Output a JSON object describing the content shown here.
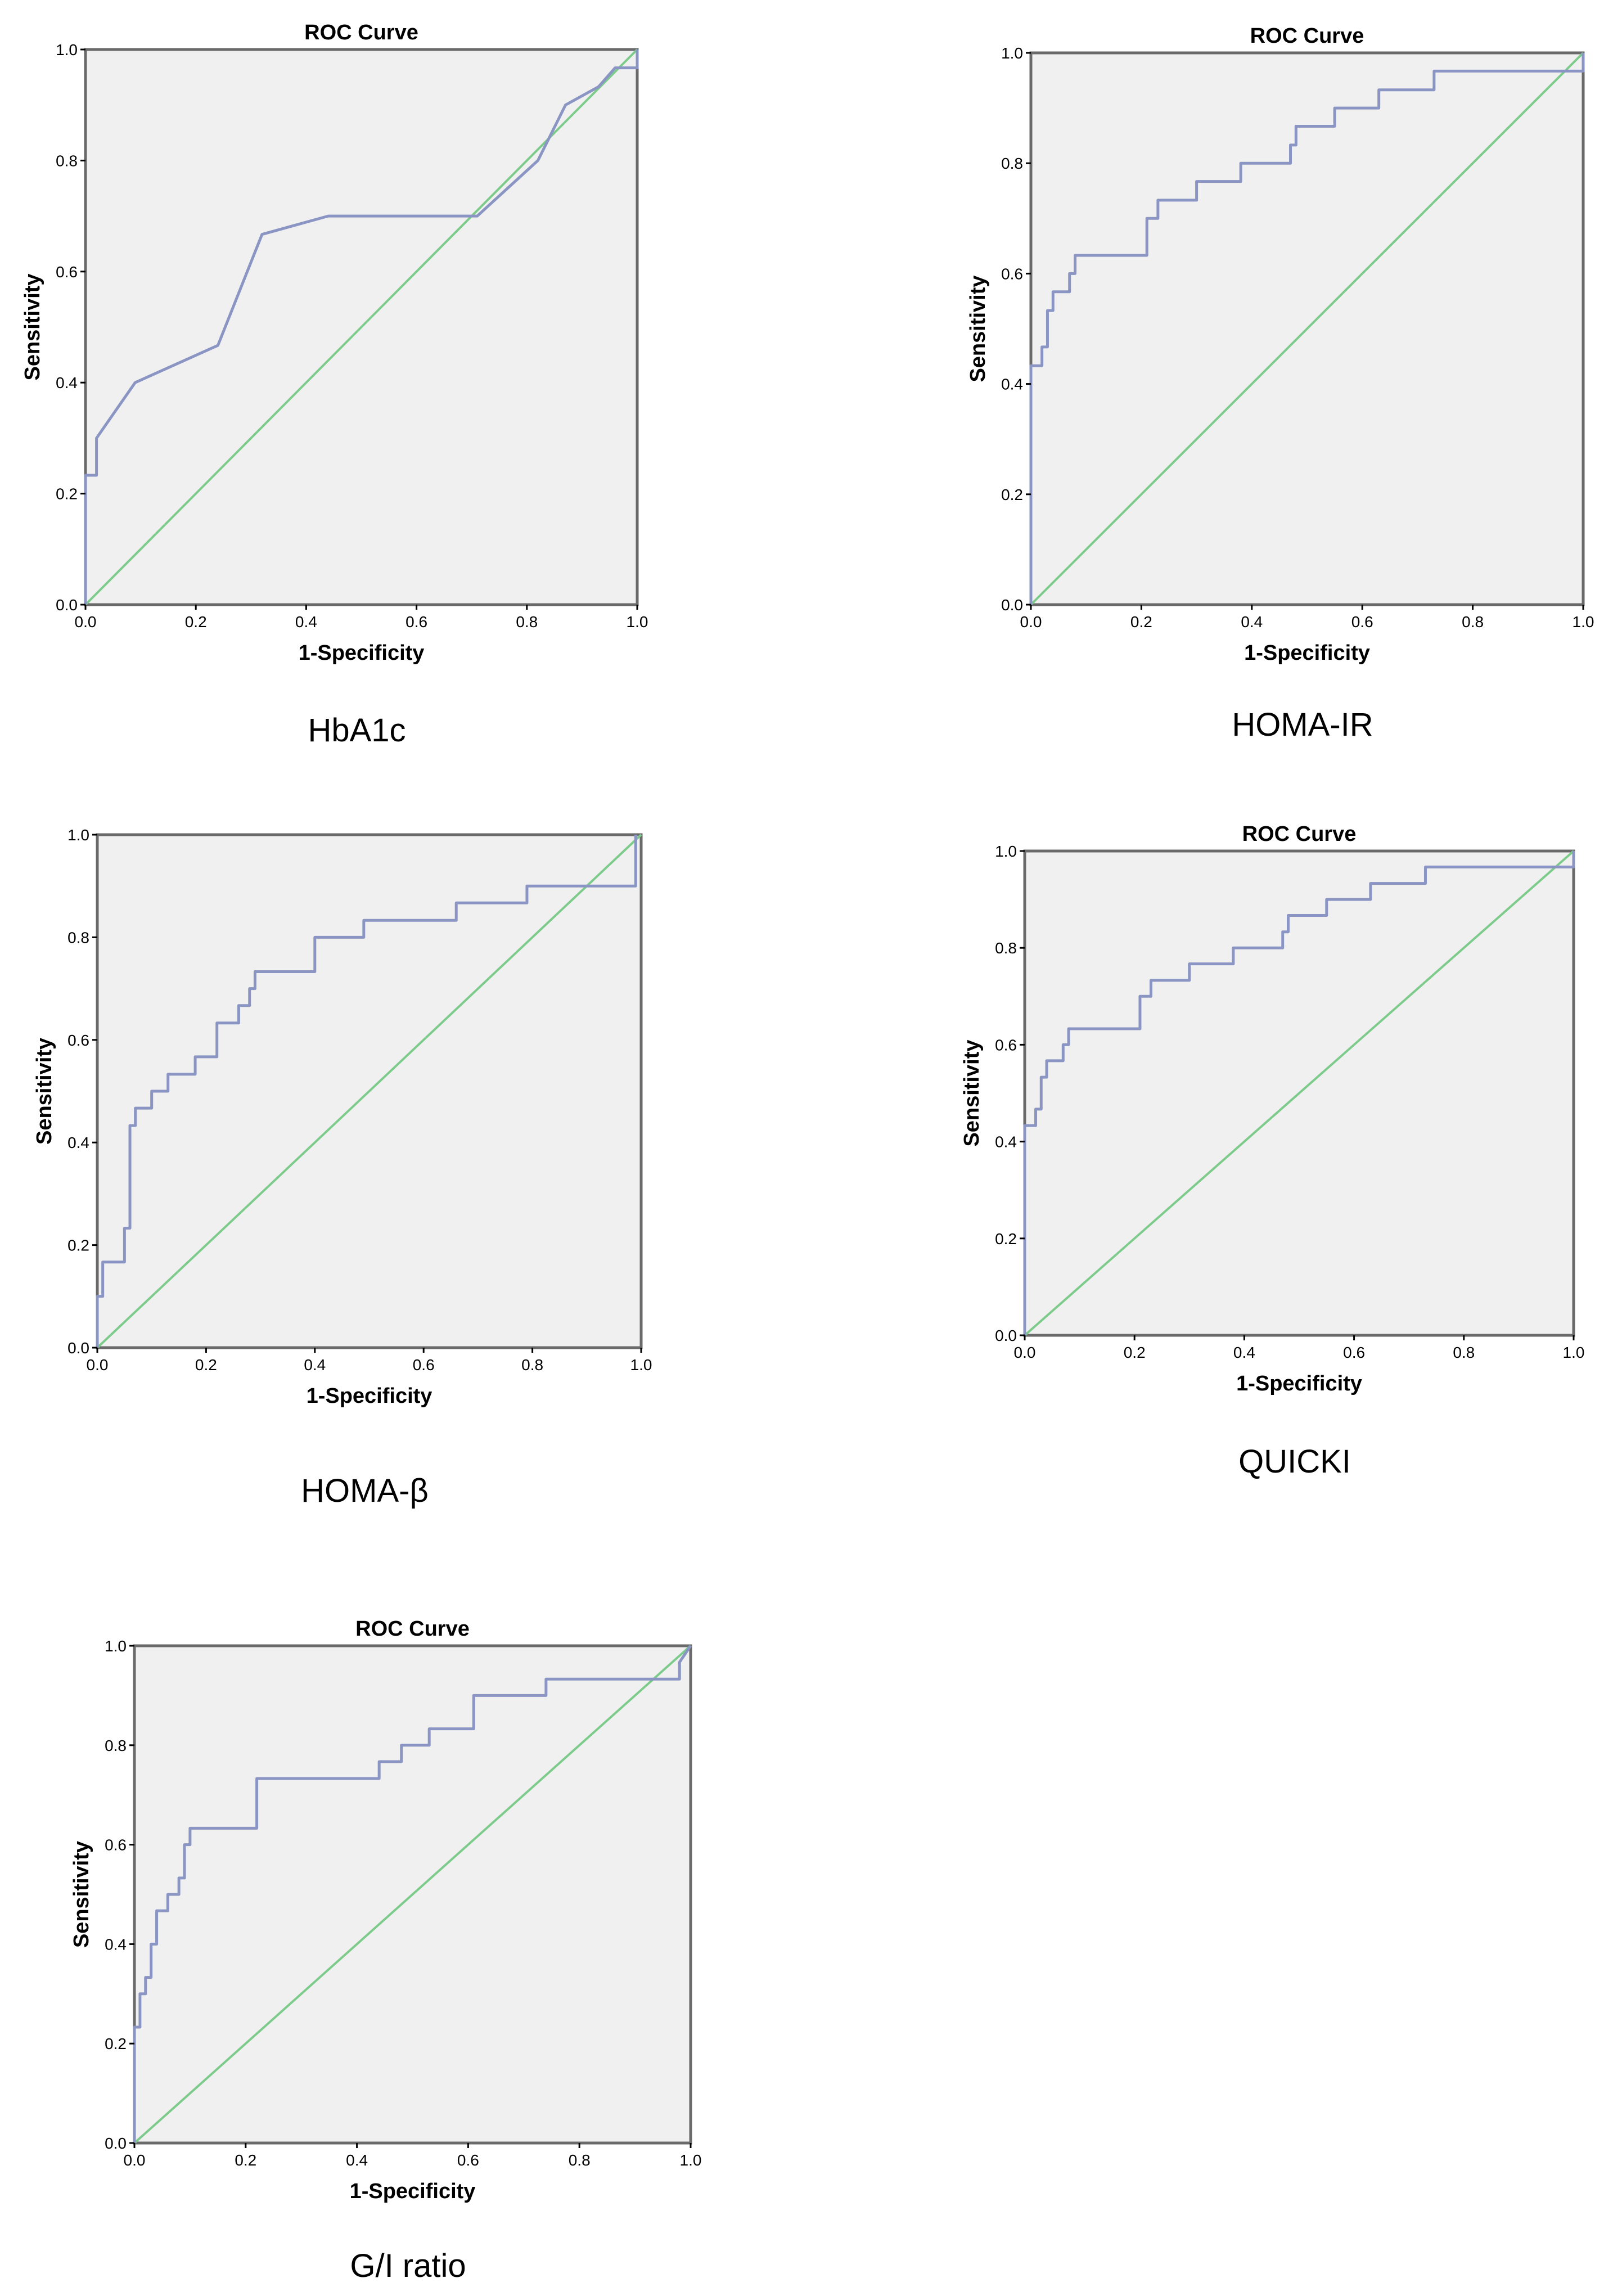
{
  "colors": {
    "roc": "#8a95c4",
    "reference": "#7ccb8b",
    "plot_bg": "#f0f0f0",
    "frame": "#6a6a6a"
  },
  "chart_data": [
    {
      "type": "line",
      "caption": "HbA1c",
      "title": "ROC Curve",
      "xlabel": "1-Specificity",
      "ylabel": "Sensitivity",
      "xlim": [
        0,
        1
      ],
      "ylim": [
        0,
        1
      ],
      "xticks": [
        "0.0",
        "0.2",
        "0.4",
        "0.6",
        "0.8",
        "1.0"
      ],
      "yticks": [
        "0.0",
        "0.2",
        "0.4",
        "0.6",
        "0.8",
        "1.0"
      ],
      "series": [
        {
          "name": "ROC",
          "x": [
            0,
            0,
            0.02,
            0.02,
            0.09,
            0.24,
            0.32,
            0.44,
            0.71,
            0.82,
            0.87,
            0.93,
            0.96,
            1.0,
            1.0
          ],
          "y": [
            0,
            0.233,
            0.233,
            0.3,
            0.4,
            0.467,
            0.667,
            0.7,
            0.7,
            0.8,
            0.9,
            0.933,
            0.967,
            0.967,
            1.0
          ]
        },
        {
          "name": "Reference",
          "x": [
            0,
            1
          ],
          "y": [
            0,
            1
          ]
        }
      ]
    },
    {
      "type": "line",
      "caption": "HOMA-IR",
      "title": "ROC Curve",
      "xlabel": "1-Specificity",
      "ylabel": "Sensitivity",
      "xlim": [
        0,
        1
      ],
      "ylim": [
        0,
        1
      ],
      "xticks": [
        "0.0",
        "0.2",
        "0.4",
        "0.6",
        "0.8",
        "1.0"
      ],
      "yticks": [
        "0.0",
        "0.2",
        "0.4",
        "0.6",
        "0.8",
        "1.0"
      ],
      "series": [
        {
          "name": "ROC",
          "x": [
            0,
            0,
            0.02,
            0.02,
            0.03,
            0.03,
            0.04,
            0.04,
            0.07,
            0.07,
            0.08,
            0.08,
            0.21,
            0.21,
            0.23,
            0.23,
            0.3,
            0.3,
            0.38,
            0.38,
            0.47,
            0.47,
            0.48,
            0.48,
            0.55,
            0.55,
            0.63,
            0.63,
            0.73,
            0.73,
            1.0,
            1.0
          ],
          "y": [
            0,
            0.433,
            0.433,
            0.467,
            0.467,
            0.533,
            0.533,
            0.567,
            0.567,
            0.6,
            0.6,
            0.633,
            0.633,
            0.7,
            0.7,
            0.733,
            0.733,
            0.767,
            0.767,
            0.8,
            0.8,
            0.833,
            0.833,
            0.867,
            0.867,
            0.9,
            0.9,
            0.933,
            0.933,
            0.967,
            0.967,
            1.0
          ]
        },
        {
          "name": "Reference",
          "x": [
            0,
            1
          ],
          "y": [
            0,
            1
          ]
        }
      ]
    },
    {
      "type": "line",
      "caption": "HOMA-β",
      "title": "",
      "xlabel": "1-Specificity",
      "ylabel": "Sensitivity",
      "xlim": [
        0,
        1
      ],
      "ylim": [
        0,
        1
      ],
      "xticks": [
        "0.0",
        "0.2",
        "0.4",
        "0.6",
        "0.8",
        "1.0"
      ],
      "yticks": [
        "0.0",
        "0.2",
        "0.4",
        "0.6",
        "0.8",
        "1.0"
      ],
      "series": [
        {
          "name": "ROC",
          "x": [
            0,
            0,
            0.01,
            0.01,
            0.05,
            0.05,
            0.06,
            0.06,
            0.07,
            0.07,
            0.1,
            0.1,
            0.13,
            0.13,
            0.18,
            0.18,
            0.22,
            0.22,
            0.26,
            0.26,
            0.28,
            0.28,
            0.29,
            0.29,
            0.4,
            0.4,
            0.49,
            0.49,
            0.66,
            0.66,
            0.79,
            0.79,
            0.99,
            0.99
          ],
          "y": [
            0,
            0.1,
            0.1,
            0.167,
            0.167,
            0.233,
            0.233,
            0.433,
            0.433,
            0.467,
            0.467,
            0.5,
            0.5,
            0.533,
            0.533,
            0.567,
            0.567,
            0.633,
            0.633,
            0.667,
            0.667,
            0.7,
            0.7,
            0.733,
            0.733,
            0.8,
            0.8,
            0.833,
            0.833,
            0.867,
            0.867,
            0.9,
            0.9,
            1.0
          ]
        },
        {
          "name": "Reference",
          "x": [
            0,
            1
          ],
          "y": [
            0,
            1
          ]
        }
      ]
    },
    {
      "type": "line",
      "caption": "QUICKI",
      "title": "ROC Curve",
      "xlabel": "1-Specificity",
      "ylabel": "Sensitivity",
      "xlim": [
        0,
        1
      ],
      "ylim": [
        0,
        1
      ],
      "xticks": [
        "0.0",
        "0.2",
        "0.4",
        "0.6",
        "0.8",
        "1.0"
      ],
      "yticks": [
        "0.0",
        "0.2",
        "0.4",
        "0.6",
        "0.8",
        "1.0"
      ],
      "series": [
        {
          "name": "ROC",
          "x": [
            0,
            0,
            0.02,
            0.02,
            0.03,
            0.03,
            0.04,
            0.04,
            0.07,
            0.07,
            0.08,
            0.08,
            0.21,
            0.21,
            0.23,
            0.23,
            0.3,
            0.3,
            0.38,
            0.38,
            0.47,
            0.47,
            0.48,
            0.48,
            0.55,
            0.55,
            0.63,
            0.63,
            0.73,
            0.73,
            1.0,
            1.0
          ],
          "y": [
            0,
            0.433,
            0.433,
            0.467,
            0.467,
            0.533,
            0.533,
            0.567,
            0.567,
            0.6,
            0.6,
            0.633,
            0.633,
            0.7,
            0.7,
            0.733,
            0.733,
            0.767,
            0.767,
            0.8,
            0.8,
            0.833,
            0.833,
            0.867,
            0.867,
            0.9,
            0.9,
            0.933,
            0.933,
            0.967,
            0.967,
            1.0
          ]
        },
        {
          "name": "Reference",
          "x": [
            0,
            1
          ],
          "y": [
            0,
            1
          ]
        }
      ]
    },
    {
      "type": "line",
      "caption": "G/I ratio",
      "title": "ROC Curve",
      "xlabel": "1-Specificity",
      "ylabel": "Sensitivity",
      "xlim": [
        0,
        1
      ],
      "ylim": [
        0,
        1
      ],
      "xticks": [
        "0.0",
        "0.2",
        "0.4",
        "0.6",
        "0.8",
        "1.0"
      ],
      "yticks": [
        "0.0",
        "0.2",
        "0.4",
        "0.6",
        "0.8",
        "1.0"
      ],
      "series": [
        {
          "name": "ROC",
          "x": [
            0,
            0,
            0.01,
            0.01,
            0.02,
            0.02,
            0.03,
            0.03,
            0.04,
            0.04,
            0.06,
            0.06,
            0.08,
            0.08,
            0.09,
            0.09,
            0.1,
            0.1,
            0.11,
            0.11,
            0.22,
            0.22,
            0.44,
            0.44,
            0.48,
            0.48,
            0.53,
            0.53,
            0.61,
            0.61,
            0.74,
            0.74,
            0.98,
            0.98,
            1.0
          ],
          "y": [
            0,
            0.233,
            0.233,
            0.3,
            0.3,
            0.333,
            0.333,
            0.4,
            0.4,
            0.467,
            0.467,
            0.5,
            0.5,
            0.533,
            0.533,
            0.6,
            0.6,
            0.633,
            0.633,
            0.633,
            0.633,
            0.733,
            0.733,
            0.767,
            0.767,
            0.8,
            0.8,
            0.833,
            0.833,
            0.9,
            0.9,
            0.933,
            0.933,
            0.967,
            1.0
          ]
        },
        {
          "name": "Reference",
          "x": [
            0,
            1
          ],
          "y": [
            0,
            1
          ]
        }
      ]
    }
  ]
}
